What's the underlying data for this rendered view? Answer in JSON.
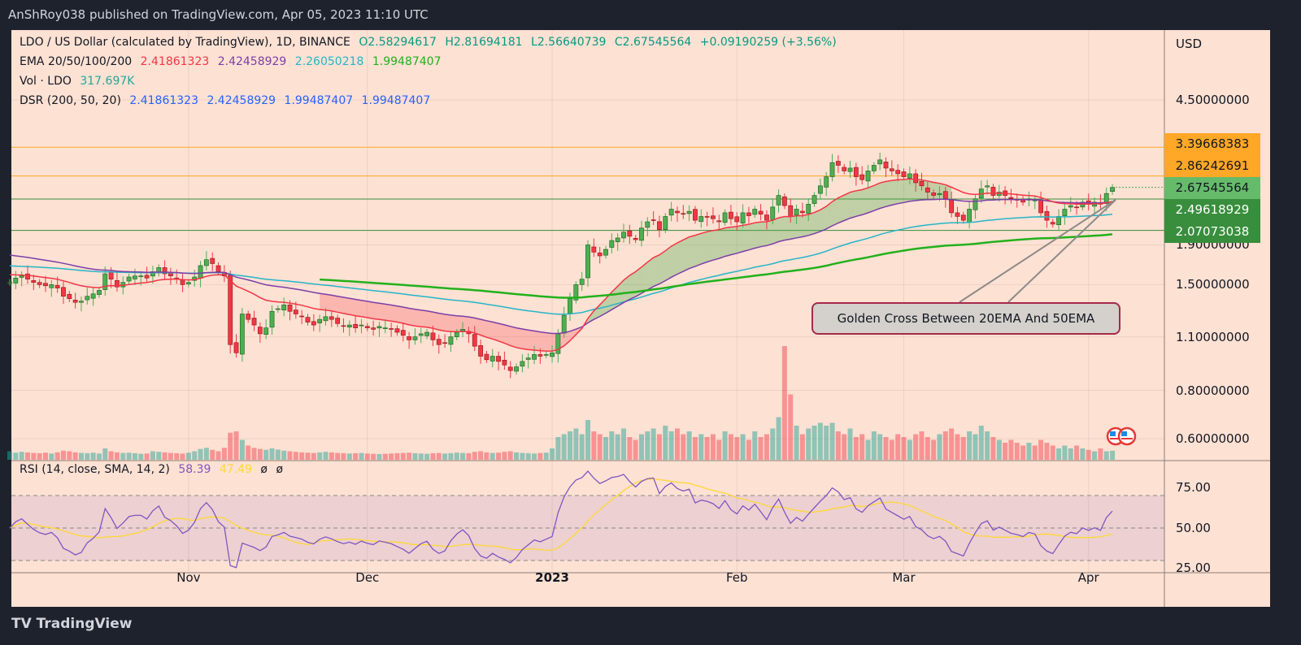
{
  "header": {
    "published": "AnShRoy038 published on TradingView.com, Apr 05, 2023 11:10 UTC"
  },
  "legend": {
    "symbol": "LDO / US Dollar (calculated by TradingView), 1D, BINANCE",
    "open": "O2.58294617",
    "high": "H2.81694181",
    "low": "L2.56640739",
    "close": "C2.67545564",
    "change": "+0.09190259 (+3.56%)",
    "ema_label": "EMA 20/50/100/200",
    "ema20": "2.41861323",
    "ema50": "2.42458929",
    "ema100": "2.26050218",
    "ema200": "1.99487407",
    "vol_label": "Vol · LDO",
    "vol": "317.697K",
    "dsr_label": "DSR (200, 50, 20)",
    "dsr": [
      "2.41861323",
      "2.42458929",
      "1.99487407",
      "1.99487407"
    ],
    "rsi_label": "RSI (14, close, SMA, 14, 2)",
    "rsi": "58.39",
    "rsi_sma": "47.49",
    "rsi_extra": [
      "ø",
      "ø"
    ]
  },
  "price_axis": {
    "currency": "USD",
    "labels": [
      "4.50000000",
      "1.90000000",
      "1.50000000",
      "1.10000000",
      "0.80000000",
      "0.60000000"
    ],
    "badges": [
      {
        "value": "3.39668383",
        "color": "#ffa726"
      },
      {
        "value": "2.86242691",
        "color": "#ffa726"
      },
      {
        "value": "2.67545564",
        "color": "#66bb6a"
      },
      {
        "value": "2.49618929",
        "color": "#388e3c"
      },
      {
        "value": "2.07073038",
        "color": "#388e3c"
      }
    ]
  },
  "rsi_axis": {
    "labels": [
      "75.00",
      "50.00",
      "25.00"
    ]
  },
  "time_axis": {
    "labels": [
      "Nov",
      "Dec",
      "2023",
      "Feb",
      "Mar",
      "Apr"
    ]
  },
  "annotation": {
    "text": "Golden Cross Between 20EMA And 50EMA"
  },
  "branding": {
    "logo": "TradingView"
  },
  "colors": {
    "up": "#4caf50",
    "down": "#f23645",
    "ema20": "#f23645",
    "ema50": "#7b3fa8",
    "ema100": "#26b5c8",
    "ema200": "#22b11c",
    "resistance": "#ffa726",
    "support": "#388e3c"
  },
  "chart_data": {
    "type": "candlestick",
    "symbol": "LDO/USD",
    "interval": "1D",
    "scale": "log",
    "start_date": "2022-10-02",
    "end_date": "2023-04-05",
    "ylim": [
      0.55,
      5.2
    ],
    "closes": [
      1.52,
      1.56,
      1.58,
      1.55,
      1.52,
      1.5,
      1.49,
      1.5,
      1.47,
      1.4,
      1.38,
      1.35,
      1.36,
      1.4,
      1.42,
      1.45,
      1.6,
      1.55,
      1.48,
      1.52,
      1.57,
      1.58,
      1.58,
      1.56,
      1.62,
      1.66,
      1.6,
      1.58,
      1.55,
      1.5,
      1.52,
      1.57,
      1.68,
      1.74,
      1.7,
      1.62,
      1.58,
      1.05,
      1.0,
      1.26,
      1.22,
      1.18,
      1.12,
      1.16,
      1.28,
      1.3,
      1.33,
      1.28,
      1.26,
      1.24,
      1.2,
      1.18,
      1.22,
      1.24,
      1.22,
      1.19,
      1.17,
      1.18,
      1.16,
      1.18,
      1.16,
      1.15,
      1.17,
      1.16,
      1.15,
      1.13,
      1.11,
      1.08,
      1.1,
      1.12,
      1.13,
      1.08,
      1.05,
      1.06,
      1.1,
      1.13,
      1.15,
      1.12,
      1.04,
      0.98,
      0.96,
      0.98,
      0.95,
      0.93,
      0.9,
      0.92,
      0.95,
      0.97,
      0.99,
      0.98,
      0.99,
      1.0,
      1.12,
      1.25,
      1.38,
      1.5,
      1.55,
      1.9,
      1.82,
      1.78,
      1.85,
      1.95,
      1.98,
      2.05,
      2.0,
      1.96,
      2.1,
      2.18,
      2.2,
      2.08,
      2.25,
      2.35,
      2.3,
      2.28,
      2.32,
      2.2,
      2.25,
      2.24,
      2.22,
      2.18,
      2.3,
      2.22,
      2.18,
      2.3,
      2.26,
      2.35,
      2.28,
      2.2,
      2.38,
      2.55,
      2.4,
      2.25,
      2.35,
      2.3,
      2.42,
      2.55,
      2.7,
      2.85,
      3.1,
      3.05,
      2.95,
      3.0,
      2.85,
      2.8,
      2.95,
      3.05,
      3.15,
      3.0,
      2.95,
      2.9,
      2.85,
      2.9,
      2.75,
      2.7,
      2.6,
      2.55,
      2.58,
      2.5,
      2.3,
      2.25,
      2.2,
      2.35,
      2.5,
      2.65,
      2.7,
      2.55,
      2.6,
      2.55,
      2.5,
      2.48,
      2.45,
      2.5,
      2.48,
      2.3,
      2.2,
      2.15,
      2.25,
      2.35,
      2.4,
      2.38,
      2.45,
      2.42,
      2.45,
      2.42,
      2.58,
      2.675
    ],
    "volumes_k": [
      300,
      250,
      280,
      260,
      240,
      230,
      250,
      220,
      260,
      320,
      300,
      260,
      240,
      230,
      250,
      220,
      400,
      300,
      260,
      240,
      250,
      230,
      210,
      220,
      300,
      280,
      260,
      240,
      230,
      220,
      250,
      300,
      380,
      420,
      350,
      300,
      420,
      950,
      1000,
      700,
      500,
      420,
      380,
      350,
      400,
      360,
      320,
      300,
      280,
      260,
      250,
      240,
      260,
      280,
      260,
      240,
      230,
      220,
      230,
      240,
      220,
      210,
      200,
      210,
      220,
      230,
      240,
      250,
      230,
      220,
      210,
      230,
      240,
      220,
      230,
      250,
      240,
      230,
      280,
      300,
      260,
      240,
      250,
      280,
      300,
      260,
      240,
      230,
      220,
      240,
      250,
      400,
      800,
      900,
      1000,
      1100,
      900,
      1400,
      1000,
      900,
      800,
      1000,
      900,
      1100,
      800,
      700,
      900,
      1000,
      1100,
      900,
      1200,
      1000,
      1100,
      900,
      1000,
      800,
      900,
      800,
      900,
      700,
      1000,
      900,
      800,
      900,
      700,
      1000,
      800,
      900,
      1100,
      1500,
      4000,
      2300,
      1200,
      900,
      1100,
      1200,
      1300,
      1200,
      1300,
      1000,
      900,
      1100,
      800,
      900,
      700,
      1000,
      900,
      800,
      700,
      900,
      800,
      700,
      900,
      1000,
      800,
      700,
      900,
      1000,
      1100,
      900,
      800,
      1000,
      900,
      1200,
      1000,
      800,
      700,
      600,
      700,
      600,
      500,
      600,
      500,
      700,
      600,
      500,
      400,
      500,
      400,
      500,
      400,
      350,
      300,
      400,
      300,
      318
    ],
    "horizontal_levels": [
      3.39668383,
      2.86242691,
      2.49618929,
      2.07073038
    ],
    "indicators": [
      "EMA 20",
      "EMA 50",
      "EMA 100",
      "EMA 200",
      "Volume",
      "RSI 14 (SMA 14)"
    ],
    "rsi_levels": [
      70,
      50,
      30
    ],
    "rsi_ylim": [
      20,
      85
    ]
  }
}
